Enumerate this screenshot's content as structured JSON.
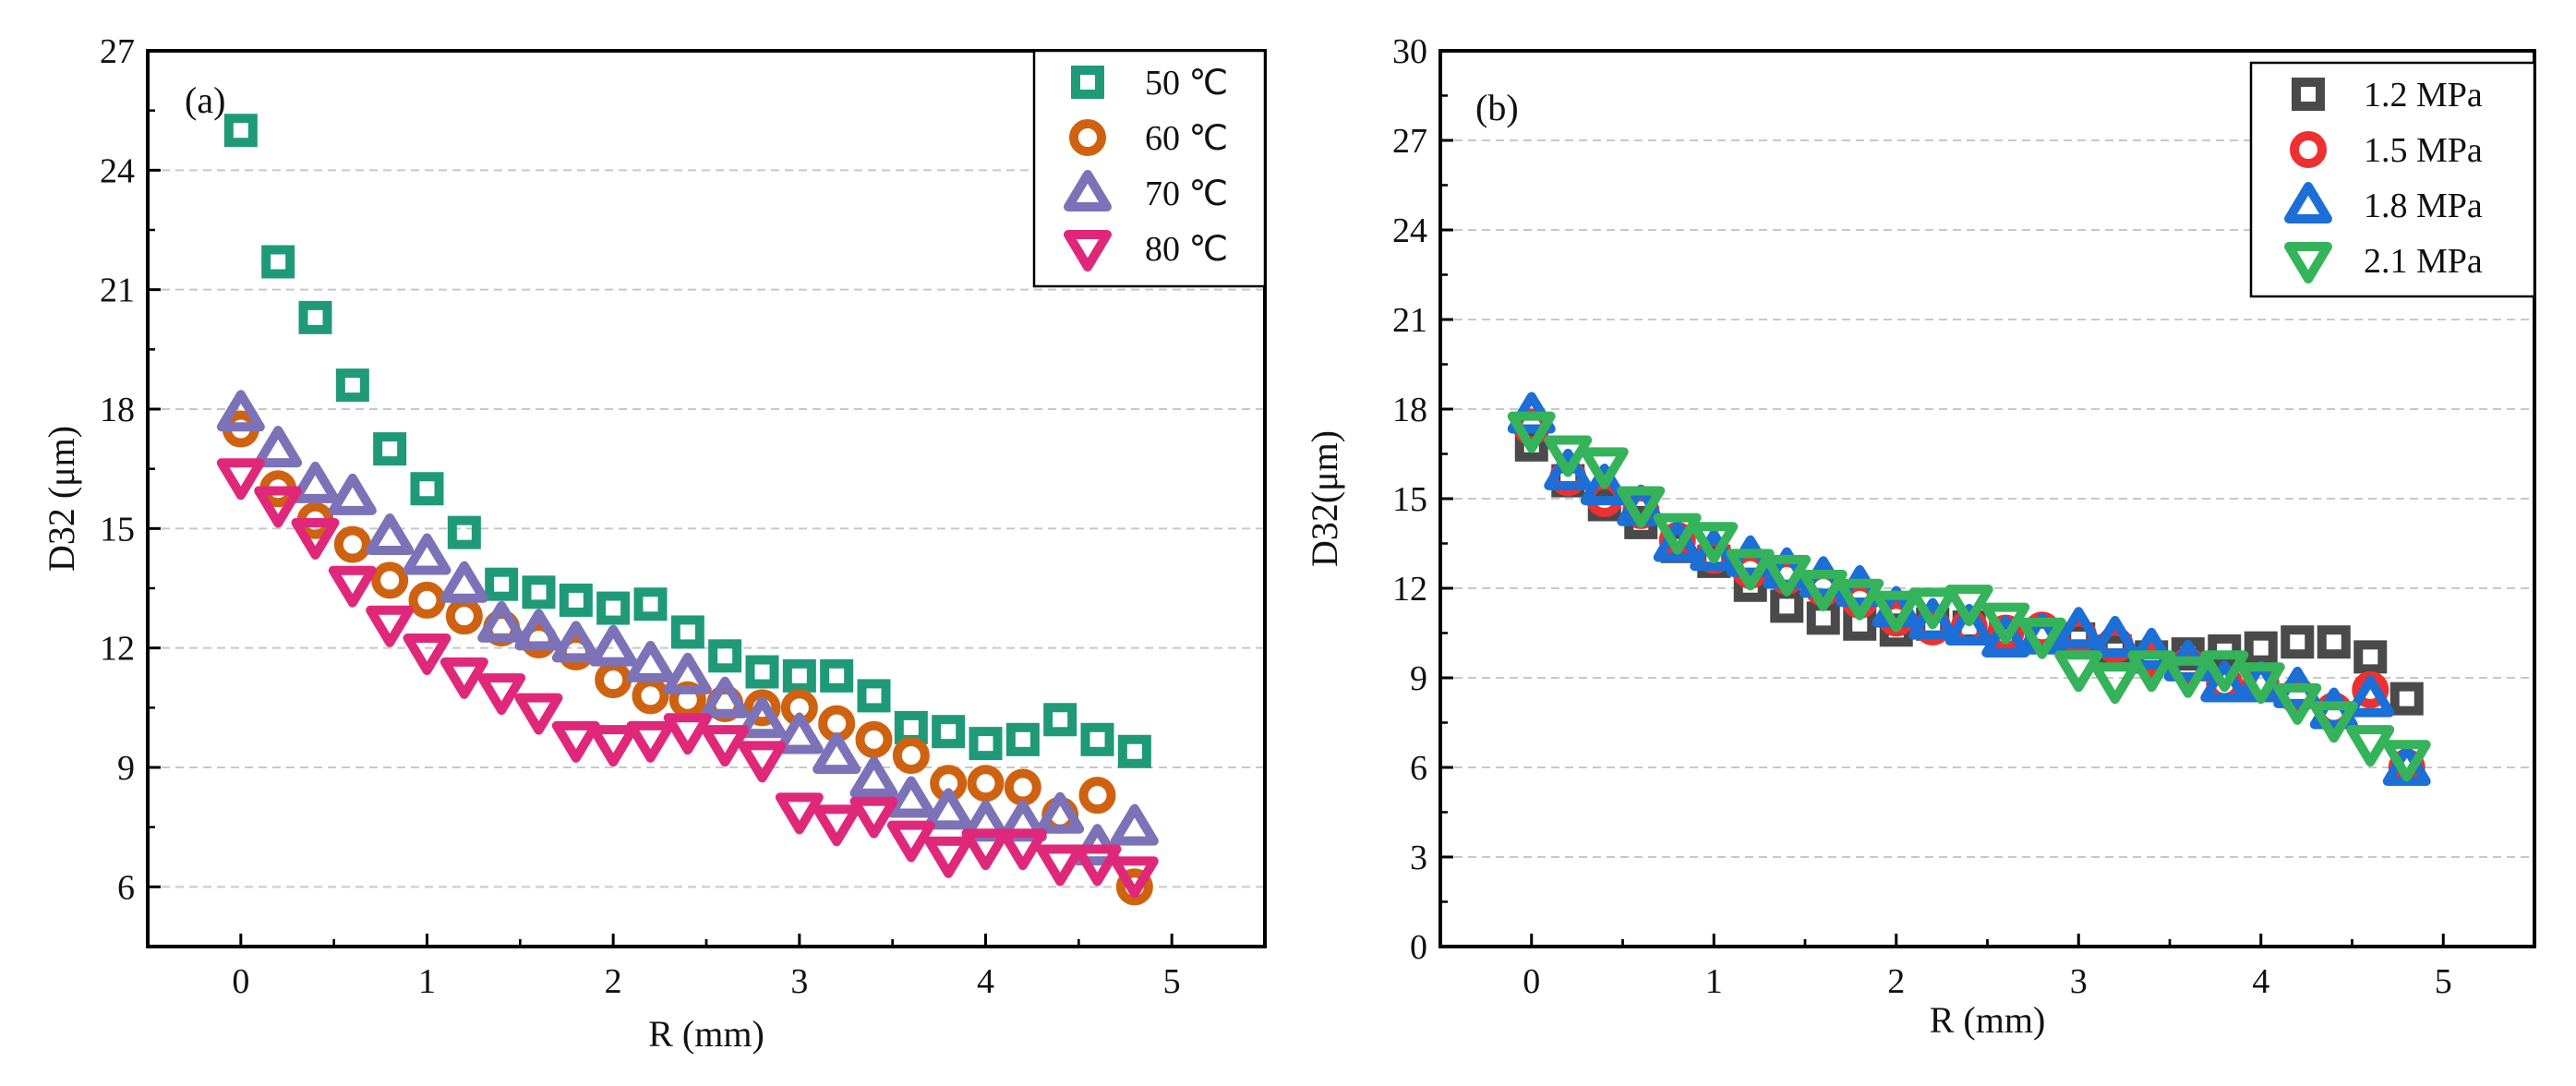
{
  "chart_data": [
    {
      "type": "scatter",
      "panel_label": "(a)",
      "xlabel": "R (mm)",
      "ylabel": "D32 (μm)",
      "xlim": [
        -0.5,
        5.5
      ],
      "ylim": [
        4.5,
        27
      ],
      "xticks": [
        0,
        1,
        2,
        3,
        4,
        5
      ],
      "yticks": [
        6,
        9,
        12,
        15,
        18,
        21,
        24,
        27
      ],
      "grid": true,
      "legend_position": "top-right",
      "x": [
        0,
        0.2,
        0.4,
        0.6,
        0.8,
        1.0,
        1.2,
        1.4,
        1.6,
        1.8,
        2.0,
        2.2,
        2.4,
        2.6,
        2.8,
        3.0,
        3.2,
        3.4,
        3.6,
        3.8,
        4.0,
        4.2,
        4.4,
        4.6,
        4.8
      ],
      "series": [
        {
          "name": "50 ℃",
          "marker": "square",
          "color": "#1f9a78",
          "values": [
            25.0,
            21.7,
            20.3,
            18.6,
            17.0,
            16.0,
            14.9,
            13.6,
            13.4,
            13.2,
            13.0,
            13.1,
            12.4,
            11.8,
            11.4,
            11.3,
            11.3,
            10.8,
            10.0,
            9.9,
            9.6,
            9.7,
            10.2,
            9.7,
            9.4
          ]
        },
        {
          "name": "60 ℃",
          "marker": "circle",
          "color": "#cf6210",
          "values": [
            17.5,
            16.0,
            15.2,
            14.6,
            13.7,
            13.2,
            12.8,
            12.5,
            12.2,
            11.9,
            11.2,
            10.8,
            10.7,
            10.6,
            10.5,
            10.5,
            10.1,
            9.7,
            9.3,
            8.6,
            8.6,
            8.5,
            7.8,
            8.3,
            6.0
          ]
        },
        {
          "name": "70 ℃",
          "marker": "triangle-up",
          "color": "#7b72b8",
          "values": [
            17.9,
            17.0,
            16.1,
            15.8,
            14.8,
            14.3,
            13.6,
            12.6,
            12.4,
            12.1,
            12.0,
            11.6,
            11.3,
            10.7,
            10.2,
            9.8,
            9.3,
            8.7,
            8.2,
            7.9,
            7.6,
            7.6,
            7.8,
            7.0,
            7.5
          ]
        },
        {
          "name": "80 ℃",
          "marker": "triangle-down",
          "color": "#e0287a",
          "values": [
            16.3,
            15.6,
            14.8,
            13.6,
            12.6,
            11.9,
            11.3,
            10.9,
            10.4,
            9.7,
            9.6,
            9.7,
            9.9,
            9.6,
            9.2,
            7.9,
            7.6,
            7.8,
            7.2,
            6.8,
            7.0,
            7.0,
            6.6,
            6.6,
            6.3
          ]
        }
      ]
    },
    {
      "type": "scatter",
      "panel_label": "(b)",
      "xlabel": "R (mm)",
      "ylabel": "D32(μm)",
      "xlim": [
        -0.5,
        5.5
      ],
      "ylim": [
        0,
        30
      ],
      "xticks": [
        0,
        1,
        2,
        3,
        4,
        5
      ],
      "yticks": [
        0,
        3,
        6,
        9,
        12,
        15,
        18,
        21,
        24,
        27,
        30
      ],
      "grid": true,
      "legend_position": "top-right",
      "x": [
        0,
        0.2,
        0.4,
        0.6,
        0.8,
        1.0,
        1.2,
        1.4,
        1.6,
        1.8,
        2.0,
        2.2,
        2.4,
        2.6,
        2.8,
        3.0,
        3.2,
        3.4,
        3.6,
        3.8,
        4.0,
        4.2,
        4.4,
        4.6,
        4.8
      ],
      "series": [
        {
          "name": "1.2 MPa",
          "marker": "square",
          "color": "#4a4a4a",
          "values": [
            16.8,
            15.6,
            14.8,
            14.2,
            13.4,
            12.9,
            12.1,
            11.4,
            11.0,
            10.8,
            10.6,
            10.8,
            10.7,
            10.4,
            10.4,
            10.3,
            9.9,
            9.7,
            9.8,
            9.9,
            10.0,
            10.2,
            10.2,
            9.7,
            8.3
          ]
        },
        {
          "name": "1.5 MPa",
          "marker": "circle",
          "color": "#ee3030",
          "values": [
            17.4,
            15.7,
            15.0,
            14.6,
            13.6,
            13.1,
            12.6,
            12.4,
            12.0,
            11.6,
            11.0,
            10.7,
            10.7,
            10.5,
            10.6,
            10.4,
            10.1,
            9.6,
            9.4,
            8.8,
            8.8,
            8.4,
            7.9,
            8.6,
            6.0
          ]
        },
        {
          "name": "1.8 MPa",
          "marker": "triangle-up",
          "color": "#1b6fd6",
          "values": [
            17.8,
            15.9,
            15.4,
            14.7,
            13.5,
            13.2,
            13.0,
            12.6,
            12.3,
            12.0,
            11.3,
            10.9,
            10.7,
            10.3,
            10.4,
            10.6,
            10.3,
            9.9,
            9.5,
            8.8,
            8.8,
            8.6,
            7.9,
            8.3,
            6.0
          ]
        },
        {
          "name": "2.1 MPa",
          "marker": "triangle-down",
          "color": "#35b35a",
          "values": [
            17.3,
            16.5,
            16.1,
            14.8,
            13.9,
            13.6,
            12.7,
            12.5,
            12.0,
            11.7,
            11.3,
            11.4,
            11.5,
            10.9,
            10.4,
            9.3,
            8.9,
            9.3,
            9.1,
            9.3,
            8.9,
            8.2,
            7.6,
            6.8,
            6.3
          ]
        }
      ]
    }
  ]
}
